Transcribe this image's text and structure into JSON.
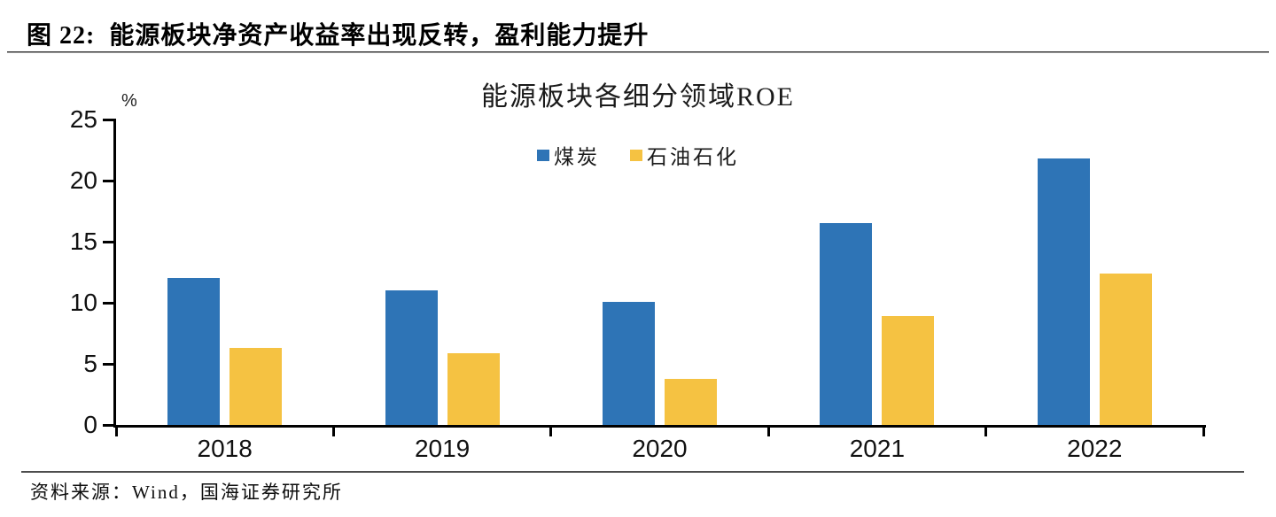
{
  "header": {
    "label": "图 22:",
    "title": "能源板块净资产收益率出现反转，盈利能力提升"
  },
  "source": {
    "text": "资料来源：Wind，国海证券研究所"
  },
  "chart_data": {
    "type": "bar",
    "title": "能源板块各细分领域ROE",
    "unit_label": "%",
    "categories": [
      "2018",
      "2019",
      "2020",
      "2021",
      "2022"
    ],
    "series": [
      {
        "name": "煤炭",
        "color": "#2E74B6",
        "values": [
          12.0,
          11.0,
          10.1,
          16.5,
          21.8
        ]
      },
      {
        "name": "石油石化",
        "color": "#F5C242",
        "values": [
          6.3,
          5.9,
          3.8,
          8.9,
          12.4
        ]
      }
    ],
    "ylim": [
      0,
      25
    ],
    "yticks": [
      0,
      5,
      10,
      15,
      20,
      25
    ],
    "xlabel": "",
    "ylabel": "%",
    "grid": false,
    "legend_position": "top-center"
  }
}
